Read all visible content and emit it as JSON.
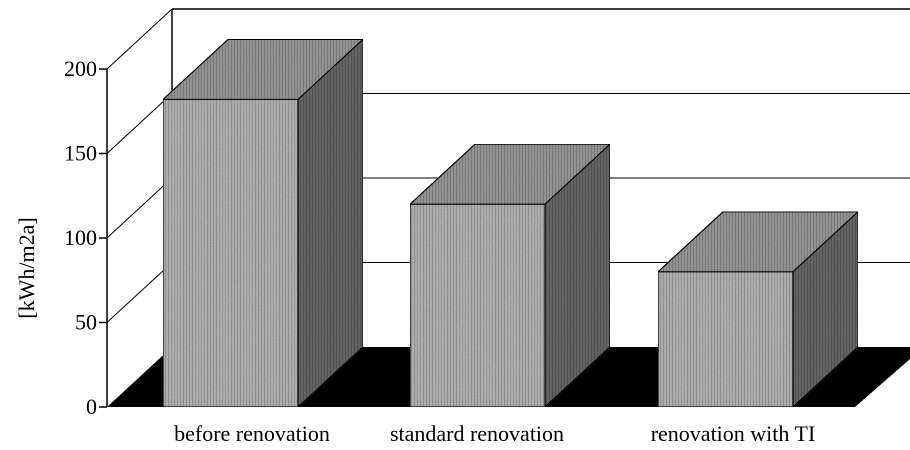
{
  "chart_data": {
    "type": "bar",
    "categories": [
      "before renovation",
      "standard renovation",
      "renovation with TI"
    ],
    "values": [
      182,
      120,
      80
    ],
    "title": "",
    "xlabel": "",
    "ylabel": "[kWh/m2a]",
    "ylim": [
      0,
      200
    ],
    "yticks": [
      0,
      50,
      100,
      150,
      200
    ],
    "grid": true,
    "style": "3d-bars",
    "colors": {
      "bar_front": "#b9b9b9",
      "bar_top": "#9c9c9c",
      "bar_side": "#6a6a6a",
      "floor": "#000000",
      "grid": "#000000"
    }
  }
}
